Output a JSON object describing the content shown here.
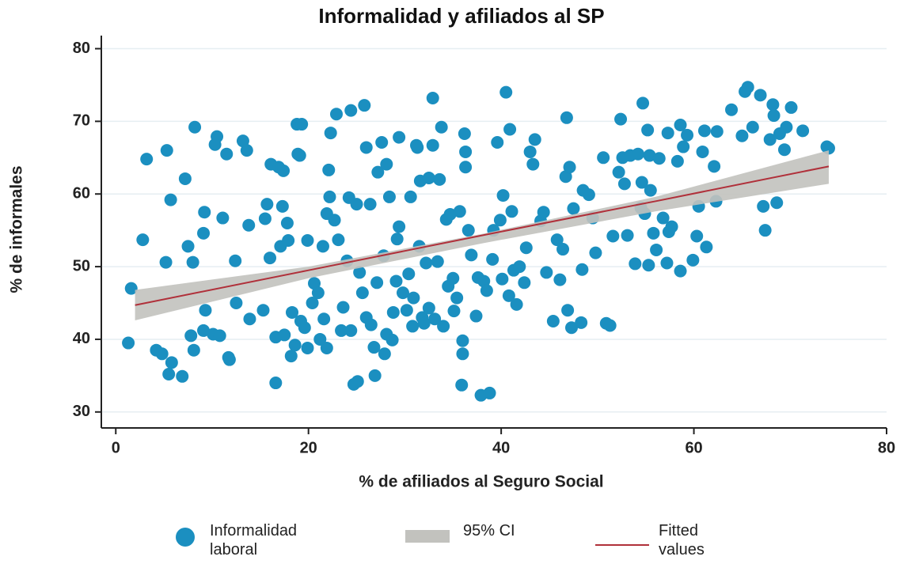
{
  "chart_data": {
    "type": "scatter",
    "title": "Informalidad y afiliados al SP",
    "xlabel": "% de afiliados al Seguro Social",
    "ylabel": "% de informales",
    "xlim": [
      -1.5,
      80
    ],
    "xticks": [
      0,
      20,
      40,
      60,
      80
    ],
    "ylim": [
      27.8,
      81.8
    ],
    "yticks": [
      30,
      40,
      50,
      60,
      70,
      80
    ],
    "grid": true,
    "series": [
      {
        "name": "Informalidad laboral",
        "color": "#1b8fc0",
        "style": "markers",
        "x": [
          1.3,
          1.6,
          2.8,
          3.2,
          4.2,
          4.8,
          5.2,
          5.3,
          5.5,
          5.7,
          5.8,
          6.9,
          7.2,
          7.5,
          7.8,
          8.1,
          8,
          8.2,
          9.1,
          9.2,
          9.1,
          9.3,
          10.1,
          10.5,
          10.3,
          10.8,
          11.1,
          11.7,
          11.8,
          11.5,
          12.4,
          12.5,
          13.2,
          13.6,
          13.8,
          13.9,
          15.3,
          15.5,
          15.7,
          16,
          16.1,
          16.6,
          16.6,
          16.9,
          17.1,
          17.3,
          17.4,
          17.5,
          17.8,
          17.9,
          18.2,
          18.3,
          18.6,
          18.9,
          19.1,
          18.8,
          19.3,
          19.2,
          19.6,
          19.9,
          19.9,
          20.4,
          20.6,
          21,
          21.2,
          21.5,
          21.6,
          21.9,
          21.9,
          22.1,
          22.2,
          22.3,
          22.7,
          22.9,
          23.1,
          23.4,
          23.6,
          24,
          24.2,
          24.4,
          24.4,
          24.7,
          25,
          25.1,
          25.3,
          25.6,
          25.8,
          26,
          26,
          26.4,
          26.5,
          26.8,
          26.9,
          27.1,
          27.2,
          27.6,
          27.8,
          27.9,
          28.1,
          28.1,
          28.4,
          28.7,
          28.8,
          29.1,
          29.2,
          29.4,
          29.4,
          29.8,
          30.2,
          30.4,
          30.6,
          30.8,
          30.9,
          31.2,
          31.3,
          31.5,
          31.6,
          31.8,
          32,
          32.2,
          32.5,
          32.5,
          32.9,
          32.9,
          33.1,
          33.4,
          33.6,
          33.8,
          34,
          34.3,
          34.5,
          34.7,
          35,
          35.1,
          35.4,
          35.7,
          35.9,
          36,
          36,
          36.2,
          36.3,
          36.3,
          36.6,
          36.9,
          37.4,
          37.6,
          37.9,
          38.2,
          38.5,
          38.8,
          39.1,
          39.2,
          39.6,
          39.9,
          40.1,
          40.2,
          40.5,
          40.8,
          40.9,
          41.1,
          41.3,
          41.6,
          41.9,
          42.4,
          42.6,
          43,
          43.3,
          43.5,
          44.1,
          44.4,
          44.7,
          45.4,
          45.8,
          46.1,
          46.4,
          46.7,
          46.8,
          46.9,
          47.1,
          47.3,
          47.5,
          48.3,
          48.4,
          48.5,
          49.1,
          49.5,
          49.8,
          50.6,
          50.9,
          51.3,
          51.6,
          52.2,
          52.4,
          52.6,
          52.8,
          53.1,
          53.4,
          53.9,
          54.2,
          54.5,
          54.6,
          54.7,
          54.9,
          55.2,
          55.3,
          55.4,
          55.5,
          55.8,
          56.1,
          56.4,
          56.8,
          57.2,
          57.3,
          57.4,
          57.7,
          58.3,
          58.6,
          58.6,
          58.9,
          59.3,
          59.9,
          60.3,
          60.5,
          60.9,
          61.1,
          61.3,
          62.1,
          62.3,
          62.4,
          63.9,
          65,
          65.3,
          65.6,
          66.1,
          66.9,
          67.2,
          67.4,
          67.9,
          68.2,
          68.3,
          68.6,
          68.9,
          69.4,
          69.6,
          70.1,
          71.3,
          73.8,
          74
        ],
        "values": [
          39.5,
          47,
          53.7,
          64.8,
          38.5,
          38,
          50.6,
          66,
          35.2,
          59.2,
          36.8,
          34.9,
          62.1,
          52.8,
          40.5,
          38.5,
          50.6,
          69.2,
          54.6,
          57.5,
          41.2,
          44,
          40.7,
          67.9,
          66.8,
          40.5,
          56.7,
          37.5,
          37.2,
          65.5,
          50.8,
          45,
          67.3,
          66,
          55.7,
          42.8,
          44,
          56.6,
          58.6,
          51.2,
          64.1,
          34,
          40.3,
          63.7,
          52.8,
          58.3,
          63.2,
          40.6,
          56,
          53.6,
          37.7,
          43.7,
          39.2,
          65.5,
          65.3,
          69.6,
          69.6,
          42.5,
          41.6,
          38.8,
          53.6,
          45,
          47.7,
          46.4,
          40,
          52.8,
          42.8,
          57.3,
          38.8,
          63.3,
          59.6,
          68.4,
          56.4,
          71,
          53.7,
          41.2,
          44.4,
          50.8,
          59.5,
          41.2,
          71.5,
          33.8,
          58.6,
          34.2,
          49.2,
          46.4,
          72.2,
          43,
          66.4,
          58.6,
          42,
          38.9,
          35,
          47.8,
          63,
          67.1,
          51.5,
          38,
          64.1,
          40.7,
          59.6,
          39.9,
          43.7,
          48,
          53.8,
          55.5,
          67.8,
          46.4,
          44,
          49,
          59.6,
          41.8,
          45.7,
          66.7,
          66.4,
          52.8,
          61.8,
          43,
          42.2,
          50.5,
          62.2,
          44.3,
          73.2,
          66.7,
          42.8,
          50.7,
          62,
          69.2,
          41.8,
          56.5,
          47.3,
          57.2,
          48.4,
          43.9,
          45.7,
          57.6,
          33.7,
          38,
          39.8,
          68.3,
          65.8,
          63.7,
          55,
          51.6,
          43.2,
          48.5,
          32.3,
          48,
          46.7,
          32.6,
          51,
          55,
          67.1,
          56.4,
          48.3,
          59.8,
          74,
          46,
          68.9,
          57.6,
          49.5,
          44.8,
          50,
          47.8,
          52.6,
          65.8,
          64.1,
          67.5,
          56.3,
          57.5,
          49.2,
          42.5,
          53.7,
          48.2,
          52.4,
          62.4,
          70.5,
          44,
          63.7,
          41.6,
          58,
          42.3,
          49.6,
          60.5,
          59.9,
          56.7,
          51.9,
          65,
          42.2,
          41.9,
          54.2,
          63,
          70.3,
          65,
          61.4,
          54.3,
          65.3,
          50.4,
          65.5,
          58.1,
          61.6,
          72.5,
          57.3,
          68.8,
          50.2,
          65.3,
          60.5,
          54.6,
          52.3,
          64.9,
          56.7,
          50.5,
          68.4,
          54.8,
          55.5,
          64.5,
          49.4,
          69.5,
          66.5,
          68.1,
          50.9,
          54.2,
          58.3,
          65.8,
          68.7,
          52.7,
          63.8,
          59,
          68.6,
          71.6,
          68,
          74.1,
          74.7,
          69.2,
          73.6,
          58.3,
          55,
          67.5,
          72.3,
          70.8,
          58.8,
          68.3,
          66.1,
          69.2,
          71.9,
          68.7,
          66.5,
          66.3
        ]
      },
      {
        "name": "95% CI",
        "color": "#c2c2be",
        "style": "band",
        "x": [
          2,
          20,
          38,
          56,
          74
        ],
        "lower": [
          42.6,
          48.4,
          53.2,
          57.6,
          61.4
        ],
        "upper": [
          46.8,
          50.0,
          54.5,
          59.6,
          66.0
        ]
      },
      {
        "name": "Fitted values",
        "color": "#b0303a",
        "style": "line",
        "x": [
          2,
          20,
          38,
          56,
          74
        ],
        "values": [
          44.7,
          49.5,
          54.3,
          59.0,
          63.8
        ]
      }
    ]
  }
}
